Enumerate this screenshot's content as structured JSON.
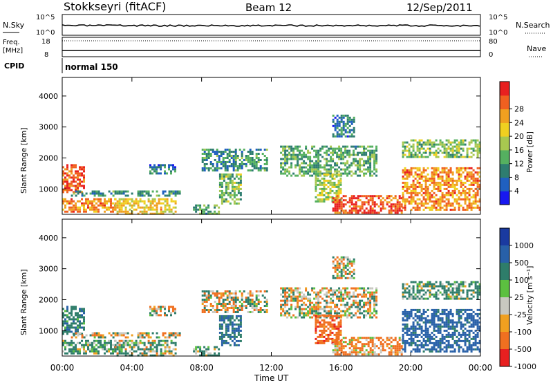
{
  "header": {
    "station": "Stokkseyri (fitACF)",
    "beam": "Beam 12",
    "date": "12/Sep/2011"
  },
  "top_panels": {
    "nsky_label": "N.Sky",
    "nsearch_label": "N.Search",
    "nsky_ticks": [
      "10^5",
      "10^0"
    ],
    "nsearch_ticks": [
      "10^5",
      "10^0"
    ],
    "freq_label": "Freq.",
    "freq_unit": "[MHz]",
    "freq_ticks": [
      "18",
      "8"
    ],
    "nave_label": "Nave",
    "nave_ticks": [
      "80",
      "0"
    ],
    "cpid_label": "CPID",
    "cpid_value": "normal 150"
  },
  "axes": {
    "ylabel": "Slant Range [km]",
    "xlabel": "Time UT",
    "yticks": [
      "1000",
      "2000",
      "3000",
      "4000"
    ],
    "xticks": [
      "00:00",
      "04:00",
      "08:00",
      "12:00",
      "16:00",
      "20:00",
      "00:00"
    ]
  },
  "colorbars": {
    "power": {
      "label": "Power [dB]",
      "ticks": [
        "4",
        "8",
        "12",
        "16",
        "20",
        "24",
        "28"
      ],
      "colors": [
        "#1818f0",
        "#2060c0",
        "#2e7d70",
        "#55b060",
        "#a8c850",
        "#f0d020",
        "#f0a020",
        "#f06020",
        "#e82020"
      ]
    },
    "velocity": {
      "label": "Velocity [m s⁻¹]",
      "ticks": [
        "1000",
        "500",
        "100",
        "25",
        "-25",
        "-100",
        "-500",
        "-1000"
      ],
      "colors": [
        "#1a3aa0",
        "#2860a8",
        "#2e7d6a",
        "#5cc040",
        "#c8c8c0",
        "#f0a020",
        "#f07020",
        "#e82020"
      ]
    }
  },
  "chart_data": {
    "type": "heatmap",
    "title": "Stokkseyri (fitACF) Beam 12 12/Sep/2011",
    "xlabel": "Time UT",
    "ylabel": "Slant Range [km]",
    "xlim_hours": [
      0,
      24
    ],
    "ylim_km": [
      180,
      4600
    ],
    "panels": [
      "Power [dB]",
      "Velocity [m s⁻¹]"
    ],
    "regions": [
      {
        "t0": 0.0,
        "t1": 1.2,
        "r0": 900,
        "r1": 1800,
        "power": 27,
        "velocity": 200
      },
      {
        "t0": 0.0,
        "t1": 3.0,
        "r0": 250,
        "r1": 700,
        "power": 24,
        "velocity": 100
      },
      {
        "t0": 3.0,
        "t1": 6.5,
        "r0": 200,
        "r1": 700,
        "power": 20,
        "velocity": 60
      },
      {
        "t0": 0.5,
        "t1": 6.8,
        "r0": 750,
        "r1": 950,
        "power": 10,
        "velocity": 0
      },
      {
        "t0": 5.0,
        "t1": 6.5,
        "r0": 1500,
        "r1": 1800,
        "power": 8,
        "velocity": 0
      },
      {
        "t0": 8.0,
        "t1": 11.8,
        "r0": 1600,
        "r1": 2300,
        "power": 10,
        "velocity": 0
      },
      {
        "t0": 9.0,
        "t1": 10.3,
        "r0": 500,
        "r1": 1500,
        "power": 14,
        "velocity": 300
      },
      {
        "t0": 7.5,
        "t1": 9.0,
        "r0": 200,
        "r1": 500,
        "power": 12,
        "velocity": 100
      },
      {
        "t0": 12.5,
        "t1": 18.0,
        "r0": 1400,
        "r1": 2400,
        "power": 12,
        "velocity": 0
      },
      {
        "t0": 14.5,
        "t1": 16.0,
        "r0": 600,
        "r1": 1500,
        "power": 16,
        "velocity": -200
      },
      {
        "t0": 15.5,
        "t1": 19.5,
        "r0": 250,
        "r1": 800,
        "power": 28,
        "velocity": -100
      },
      {
        "t0": 19.5,
        "t1": 24.0,
        "r0": 300,
        "r1": 1700,
        "power": 24,
        "velocity": 400
      },
      {
        "t0": 19.5,
        "t1": 24.0,
        "r0": 2000,
        "r1": 2600,
        "power": 14,
        "velocity": 100
      },
      {
        "t0": 15.5,
        "t1": 16.8,
        "r0": 2700,
        "r1": 3400,
        "power": 8,
        "velocity": 0
      }
    ]
  }
}
